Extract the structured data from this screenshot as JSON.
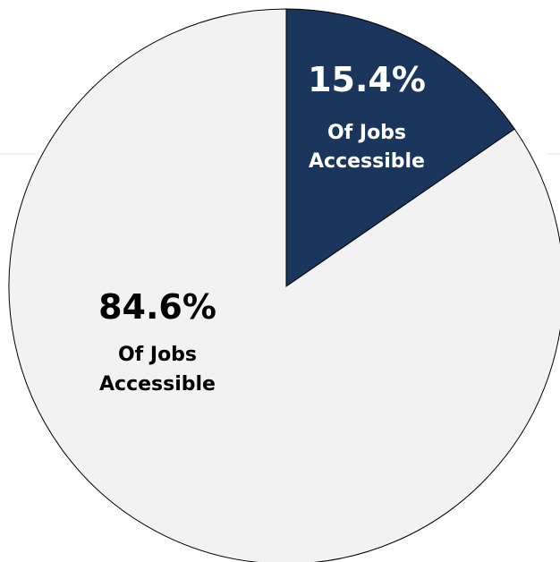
{
  "chart_data": {
    "type": "pie",
    "slices": [
      {
        "value": 15.4,
        "value_label": "15.4%",
        "label_lines": [
          "Of Jobs",
          "Accessible"
        ],
        "color": "#1a365d",
        "text_color": "#ffffff"
      },
      {
        "value": 84.6,
        "value_label": "84.6%",
        "label_lines": [
          "Of Jobs",
          "Accessible"
        ],
        "color": "#f2f2f2",
        "text_color": "#000000"
      }
    ],
    "start_angle": "12 o'clock",
    "direction": "clockwise",
    "legend": "none"
  }
}
